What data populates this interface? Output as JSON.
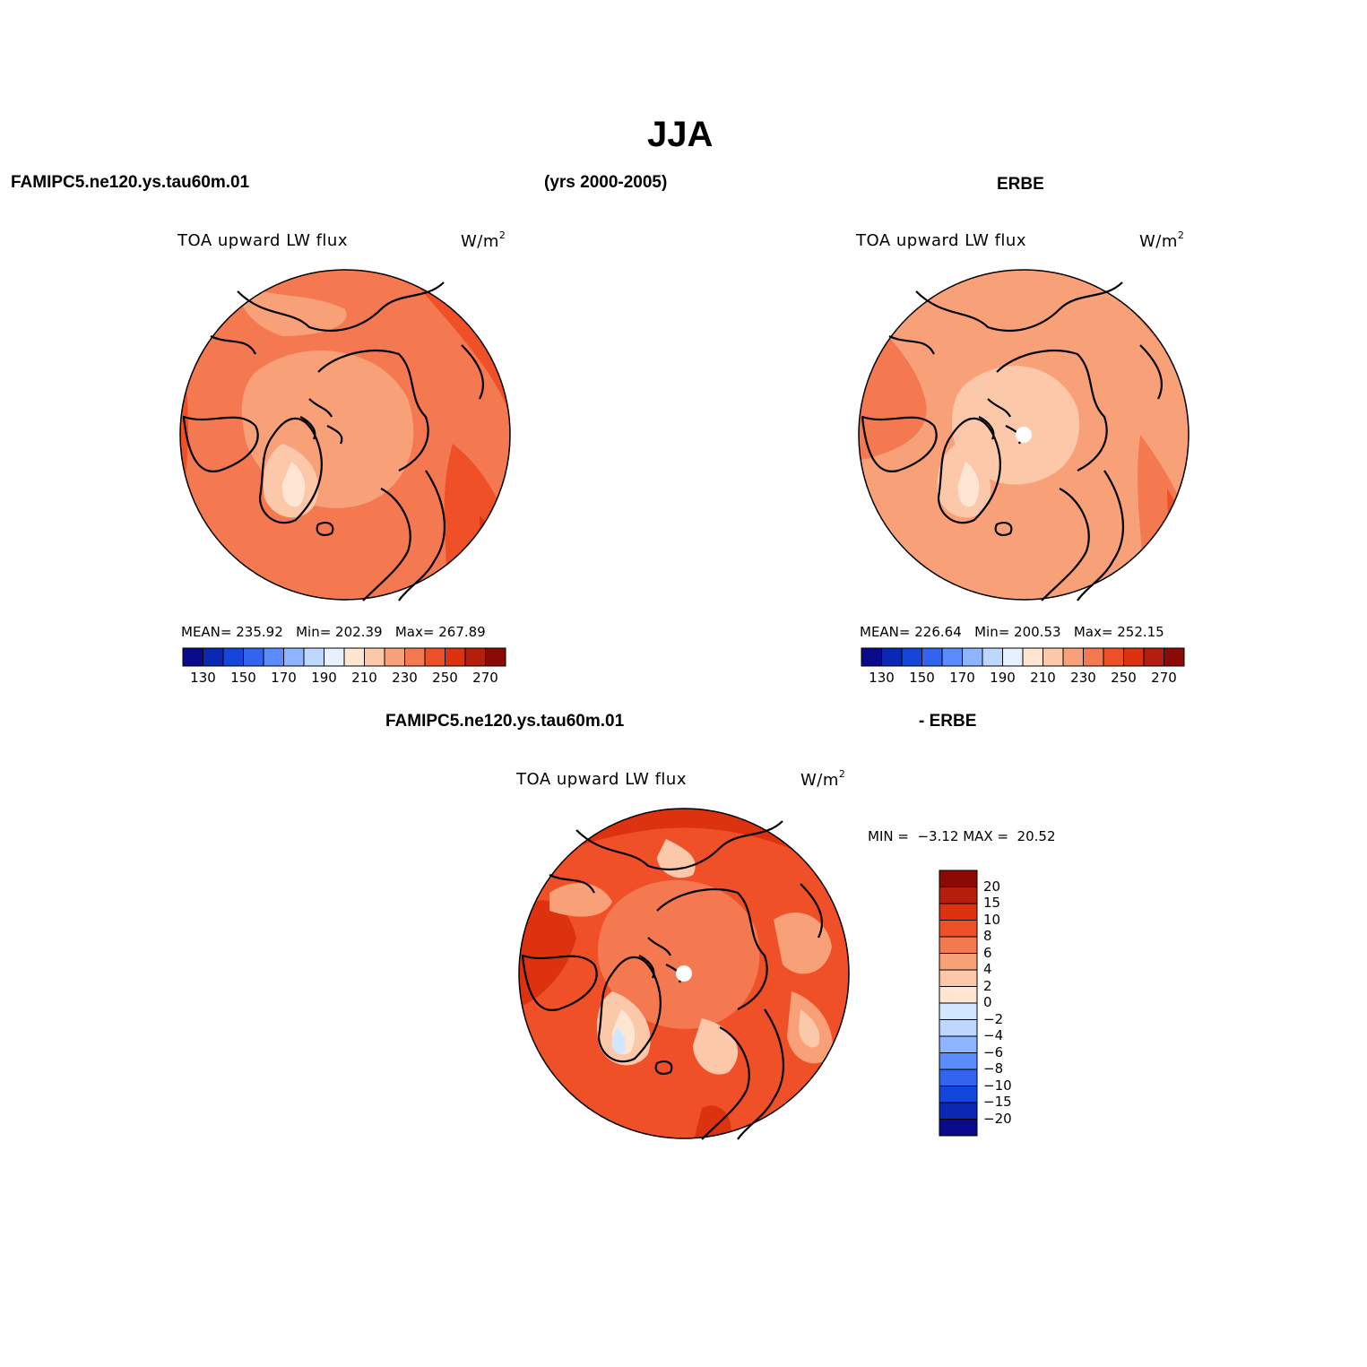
{
  "title": "JJA",
  "header": {
    "left": "FAMIPC5.ne120.ys.tau60m.01",
    "center": "(yrs 2000-2005)",
    "right": "ERBE",
    "diff_left": "FAMIPC5.ne120.ys.tau60m.01",
    "diff_right": "- ERBE"
  },
  "panels": [
    {
      "variable": "TOA upward LW flux",
      "units_base": "W/m",
      "units_exp": "2",
      "mean_label": "MEAN=",
      "mean": "235.92",
      "min_label": "Min=",
      "min": "202.39",
      "max_label": "Max=",
      "max": "267.89"
    },
    {
      "variable": "TOA upward LW flux",
      "units_base": "W/m",
      "units_exp": "2",
      "mean_label": "MEAN=",
      "mean": "226.64",
      "min_label": "Min=",
      "min": "200.53",
      "max_label": "Max=",
      "max": "252.15"
    },
    {
      "variable": "TOA upward LW flux",
      "units_base": "W/m",
      "units_exp": "2",
      "minmax_text": "MIN =  −3.12 MAX =  20.52"
    }
  ],
  "colorbar_main": {
    "colors": [
      "#0a0a8c",
      "#0a28b4",
      "#1446dc",
      "#3264f0",
      "#5a8cff",
      "#8cb4ff",
      "#bed7ff",
      "#e6f0ff",
      "#ffe6d2",
      "#fcc8aa",
      "#f8a078",
      "#f47850",
      "#f05028",
      "#dc320f",
      "#b41e0a",
      "#8c0a05"
    ],
    "ticks": [
      "130",
      "150",
      "170",
      "190",
      "210",
      "230",
      "250",
      "270"
    ]
  },
  "colorbar_diff": {
    "colors_top_to_bottom": [
      "#8c0a05",
      "#b41e0a",
      "#dc320f",
      "#f05028",
      "#f47850",
      "#f8a078",
      "#fcc8aa",
      "#ffe6d2",
      "#d2e6ff",
      "#bed7ff",
      "#8cb4ff",
      "#5a8cff",
      "#3264f0",
      "#1446dc",
      "#0a28b4",
      "#0a0a8c"
    ],
    "ticks": [
      "20",
      "15",
      "10",
      "8",
      "6",
      "4",
      "2",
      "0",
      "−2",
      "−4",
      "−6",
      "−8",
      "−10",
      "−15",
      "−20"
    ]
  }
}
